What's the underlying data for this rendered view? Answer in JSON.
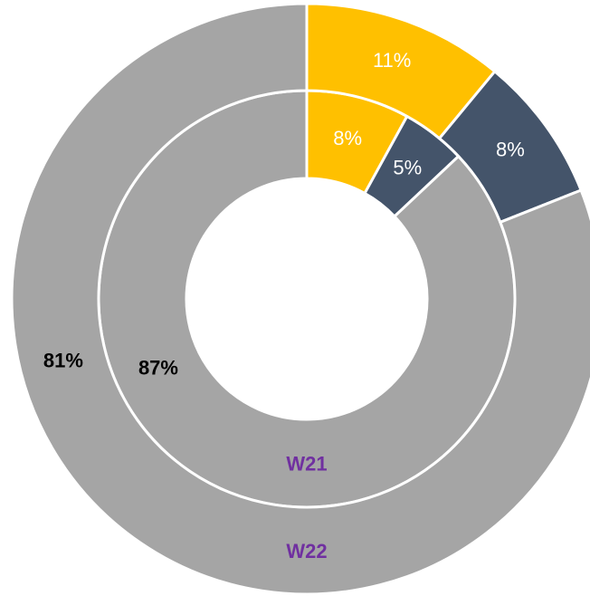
{
  "chart_data": {
    "type": "donut",
    "colors": [
      "#FFC000",
      "#44546A",
      "#A5A5A5"
    ],
    "series": [
      {
        "name": "W21",
        "values": [
          8,
          5,
          87
        ],
        "value_labels": [
          "8%",
          "5%",
          "87%"
        ]
      },
      {
        "name": "W22",
        "values": [
          11,
          8,
          81
        ],
        "value_labels": [
          "11%",
          "8%",
          "81%"
        ]
      }
    ]
  }
}
